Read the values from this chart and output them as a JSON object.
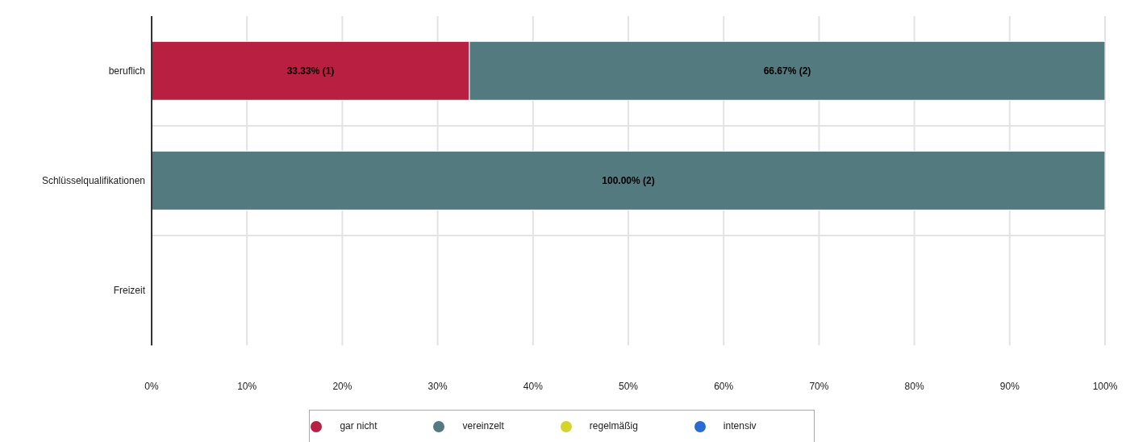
{
  "chart_data": {
    "type": "bar",
    "orientation": "horizontal",
    "stacked": true,
    "categories": [
      "beruflich",
      "Schlüsselqualifikationen",
      "Freizeit"
    ],
    "series": [
      {
        "name": "gar nicht",
        "color": "#b81f41",
        "values": [
          33.33,
          null,
          null
        ],
        "value_labels": [
          "33.33% (1)",
          null,
          null
        ]
      },
      {
        "name": "vereinzelt",
        "color": "#527a7f",
        "values": [
          66.67,
          100,
          null
        ],
        "value_labels": [
          "66.67% (2)",
          "100.00% (2)",
          null
        ]
      },
      {
        "name": "regelmäßig",
        "color": "#d4d42a",
        "values": [
          null,
          null,
          null
        ],
        "value_labels": [
          null,
          null,
          null
        ]
      },
      {
        "name": "intensiv",
        "color": "#2a6bd1",
        "values": [
          null,
          null,
          null
        ],
        "value_labels": [
          null,
          null,
          null
        ]
      }
    ],
    "xlim": [
      0,
      100
    ],
    "xticks": [
      {
        "value": 0,
        "label": "0%"
      },
      {
        "value": 10,
        "label": "10%"
      },
      {
        "value": 20,
        "label": "20%"
      },
      {
        "value": 30,
        "label": "30%"
      },
      {
        "value": 40,
        "label": "40%"
      },
      {
        "value": 50,
        "label": "50%"
      },
      {
        "value": 60,
        "label": "60%"
      },
      {
        "value": 70,
        "label": "70%"
      },
      {
        "value": 80,
        "label": "80%"
      },
      {
        "value": 90,
        "label": "90%"
      },
      {
        "value": 100,
        "label": "100%"
      }
    ],
    "grid": true,
    "legend": "bottom",
    "marker": "circle"
  }
}
